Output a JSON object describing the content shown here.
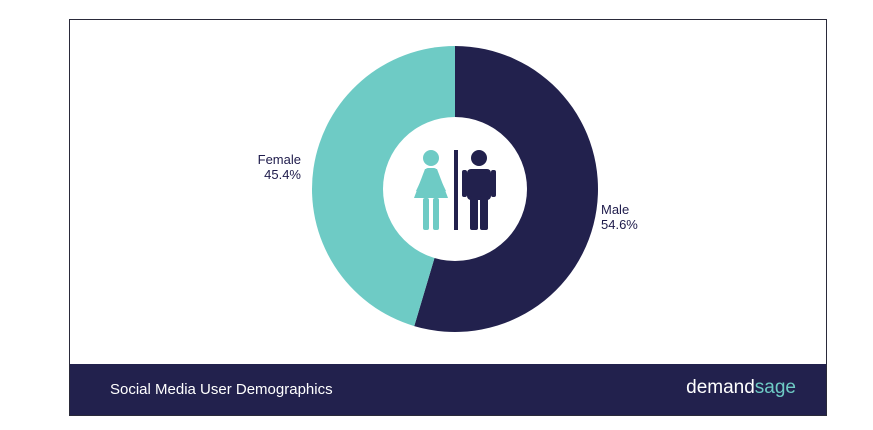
{
  "chart_data": {
    "type": "pie",
    "donut": true,
    "title": "Social Media User Demographics",
    "slices": [
      {
        "label": "Female",
        "value": 45.4,
        "display": "45.4%",
        "color": "#6ecbc5"
      },
      {
        "label": "Male",
        "value": 54.6,
        "display": "54.6%",
        "color": "#22214d"
      }
    ],
    "center_icons": [
      "female-icon",
      "male-icon"
    ]
  },
  "brand": {
    "part1": "demand",
    "part2": "sage"
  }
}
